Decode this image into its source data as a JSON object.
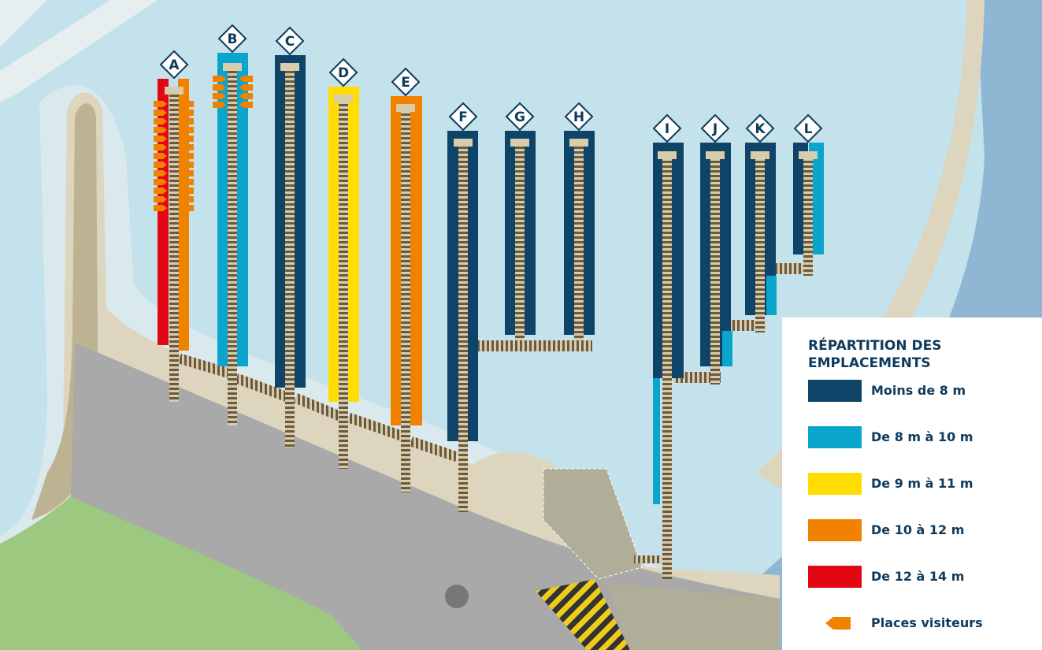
{
  "pontoons": [
    "A",
    "B",
    "C",
    "D",
    "E",
    "F",
    "G",
    "H",
    "I",
    "J",
    "K",
    "L"
  ],
  "legend": {
    "title": "RÉPARTITION DES EMPLACEMENTS",
    "items": [
      {
        "label": "Moins de 8 m",
        "color": "#0e4468"
      },
      {
        "label": "De 8 m à 10 m",
        "color": "#0aa5cc"
      },
      {
        "label": "De 9 m à 11 m",
        "color": "#ffdd00"
      },
      {
        "label": "De 10 à 12 m",
        "color": "#f08200"
      },
      {
        "label": "De 12 à 14 m",
        "color": "#e30613"
      }
    ],
    "visitors": {
      "label": "Places visiteurs",
      "color": "#f08200"
    }
  }
}
